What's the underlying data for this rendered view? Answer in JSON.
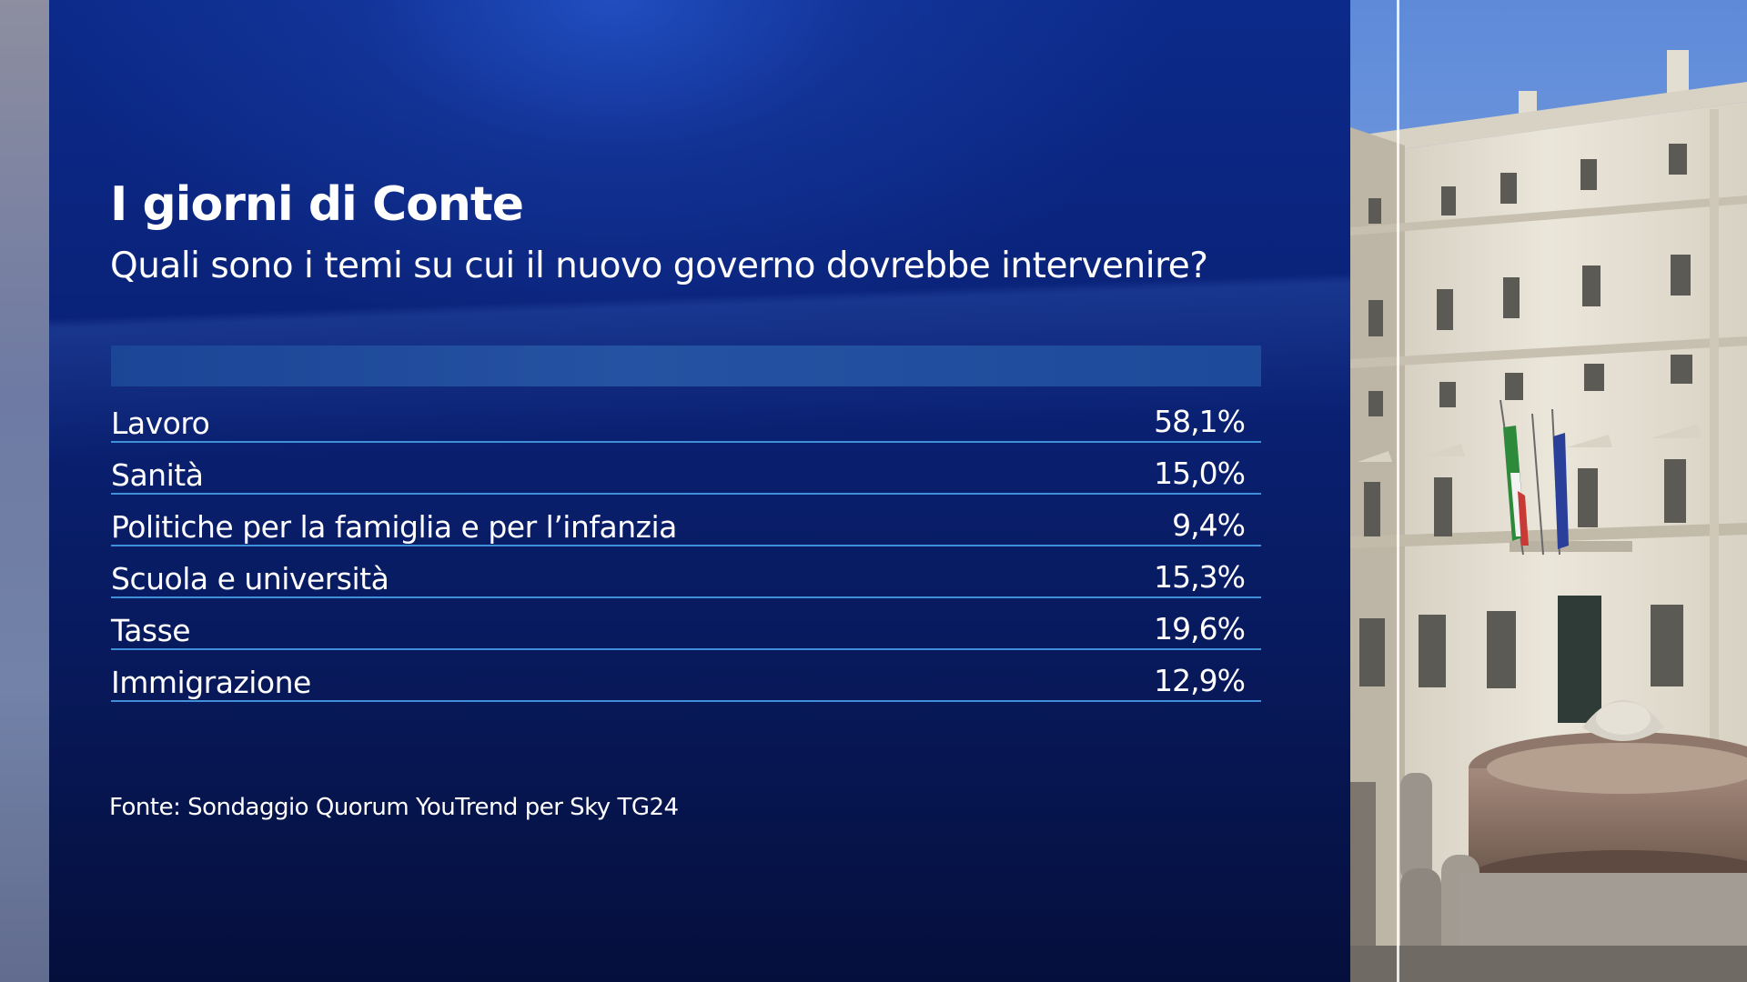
{
  "graphic": {
    "title": "I giorni di Conte",
    "subtitle": "Quali sono i temi su cui il nuovo governo dovrebbe intervenire?",
    "rows": [
      {
        "label": "Lavoro",
        "value": "58,1%"
      },
      {
        "label": "Sanità",
        "value": "15,0%"
      },
      {
        "label": "Politiche per la famiglia e per l’infanzia",
        "value": "9,4%"
      },
      {
        "label": "Scuola e università",
        "value": "15,3%"
      },
      {
        "label": "Tasse",
        "value": "19,6%"
      },
      {
        "label": "Immigrazione",
        "value": "12,9%"
      }
    ],
    "source": "Fonte: Sondaggio Quorum YouTrend per Sky TG24"
  },
  "colors": {
    "panel_dark": "#081a5e",
    "panel_light": "#0c2a8a",
    "header_bar": "#2652a3",
    "row_rule": "#3f8fd9",
    "text": "#ffffff"
  },
  "photo": {
    "subject": "palazzo-facade-with-fountain",
    "flags": [
      "italian-flag",
      "eu-flag"
    ]
  }
}
